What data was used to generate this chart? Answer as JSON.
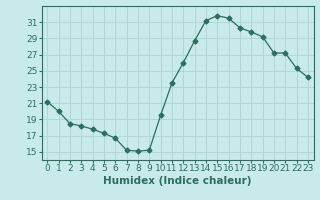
{
  "x": [
    0,
    1,
    2,
    3,
    4,
    5,
    6,
    7,
    8,
    9,
    10,
    11,
    12,
    13,
    14,
    15,
    16,
    17,
    18,
    19,
    20,
    21,
    22,
    23
  ],
  "y": [
    21.2,
    20.0,
    18.5,
    18.2,
    17.8,
    17.3,
    16.7,
    15.2,
    15.1,
    15.2,
    19.5,
    23.5,
    26.0,
    28.7,
    31.2,
    31.8,
    31.5,
    30.3,
    29.8,
    29.2,
    27.2,
    27.2,
    25.3,
    24.2
  ],
  "line_color": "#2d6e5e",
  "marker": "D",
  "marker_size": 2.5,
  "bg_color": "#c8eaea",
  "grid_color": "#b0d8d8",
  "xlabel": "Humidex (Indice chaleur)",
  "ylim": [
    14,
    33
  ],
  "xlim": [
    -0.5,
    23.5
  ],
  "yticks": [
    15,
    17,
    19,
    21,
    23,
    25,
    27,
    29,
    31
  ],
  "xticks": [
    0,
    1,
    2,
    3,
    4,
    5,
    6,
    7,
    8,
    9,
    10,
    11,
    12,
    13,
    14,
    15,
    16,
    17,
    18,
    19,
    20,
    21,
    22,
    23
  ],
  "tick_label_fontsize": 6.5,
  "xlabel_fontsize": 7.5
}
